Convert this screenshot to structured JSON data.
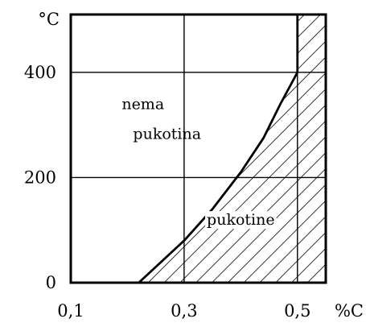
{
  "chart_data": {
    "type": "area",
    "x_unit": "%C",
    "y_unit": "°C",
    "xlim": [
      0.1,
      0.55
    ],
    "ylim": [
      0,
      510
    ],
    "x_ticks": [
      "0,1",
      "0,3",
      "0,5"
    ],
    "x_tick_values": [
      0.1,
      0.3,
      0.5
    ],
    "y_ticks": [
      "0",
      "200",
      "400"
    ],
    "y_tick_values": [
      0,
      200,
      400
    ],
    "grid": true,
    "boundary": {
      "x": [
        0.22,
        0.26,
        0.3,
        0.35,
        0.4,
        0.44,
        0.47,
        0.49,
        0.5,
        0.5,
        0.5
      ],
      "y": [
        0,
        40,
        80,
        140,
        210,
        275,
        340,
        380,
        400,
        450,
        510
      ]
    },
    "regions": [
      {
        "label_lines": [
          "nema",
          "pukotina"
        ],
        "x": 0.27,
        "y": 330
      },
      {
        "label_lines": [
          "pukotine"
        ],
        "x": 0.4,
        "y": 110,
        "hatched": true
      }
    ]
  },
  "colors": {
    "ink": "#000000",
    "background": "#ffffff"
  }
}
